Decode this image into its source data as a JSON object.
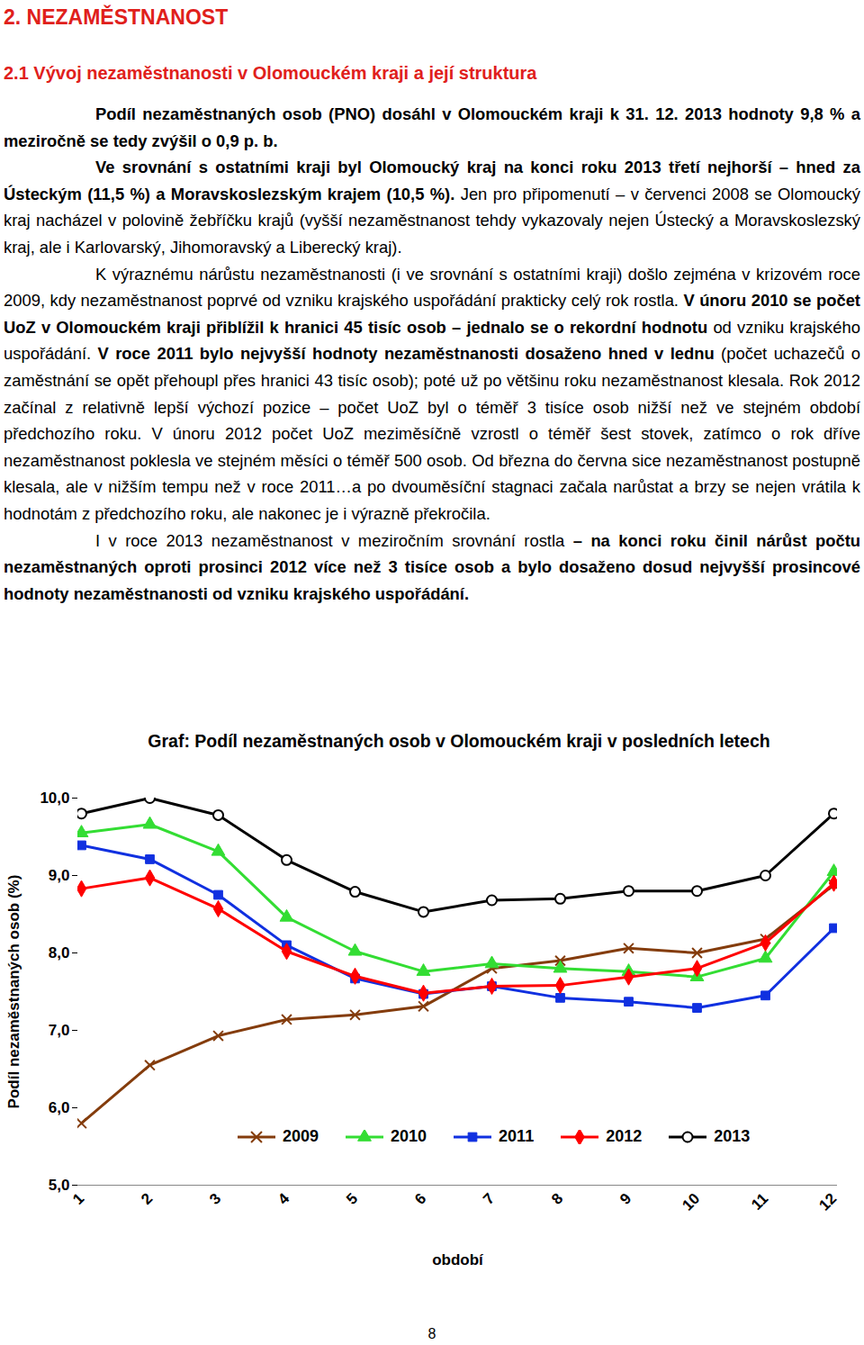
{
  "heading": "2. NEZAMĚSTNANOST",
  "subheading": "2.1 Vývoj nezaměstnanosti v Olomouckém kraji a její struktura",
  "paragraphs": [
    [
      {
        "text": "Podíl nezaměstnaných osob (PNO) dosáhl v Olomouckém kraji k 31. 12. 2013 hodnoty 9,8 % a meziročně se tedy zvýšil o 0,9 p. b.",
        "bold": true
      }
    ],
    [
      {
        "text": "Ve srovnání s ostatními kraji byl Olomoucký kraj na konci roku 2013 třetí nejhorší – hned za Ústeckým (11,5 %) a Moravskoslezským krajem (10,5 %).",
        "bold": true
      },
      {
        "text": " Jen pro připomenutí – v červenci 2008 se Olomoucký kraj nacházel v polovině žebříčku krajů (vyšší nezaměstnanost tehdy vykazovaly nejen Ústecký a Moravskoslezský kraj, ale i Karlovarský, Jihomoravský a Liberecký kraj).",
        "bold": false
      }
    ],
    [
      {
        "text": "K výraznému nárůstu nezaměstnanosti (i ve srovnání s ostatními kraji) došlo zejména v krizovém roce 2009, kdy nezaměstnanost poprvé od vzniku krajského uspořádání prakticky celý rok rostla. ",
        "bold": false
      },
      {
        "text": "V únoru 2010 se počet UoZ v Olomouckém kraji přiblížil k hranici 45 tisíc osob – jednalo se o rekordní hodnotu",
        "bold": true
      },
      {
        "text": " od vzniku krajského uspořádání. ",
        "bold": false
      },
      {
        "text": "V roce 2011 bylo nejvyšší hodnoty nezaměstnanosti dosaženo hned v lednu",
        "bold": true
      },
      {
        "text": " (počet uchazečů o zaměstnání se opět přehoupl přes hranici 43 tisíc osob); poté už po většinu roku nezaměstnanost klesala. Rok 2012 začínal z relativně lepší výchozí pozice – počet UoZ byl o téměř 3 tisíce osob nižší než ve stejném období předchozího roku. V únoru 2012 počet UoZ meziměsíčně vzrostl o téměř šest stovek, zatímco o rok dříve nezaměstnanost poklesla ve stejném měsíci o téměř 500 osob. Od března do června sice nezaměstnanost postupně klesala, ale v nižším tempu než v roce 2011…a po dvouměsíční stagnaci začala narůstat a brzy se nejen vrátila k hodnotám z předchozího roku, ale nakonec je i výrazně překročila.",
        "bold": false
      }
    ],
    [
      {
        "text": "I v roce 2013 nezaměstnanost v meziročním srovnání rostla ",
        "bold": false
      },
      {
        "text": "– na konci roku činil nárůst počtu nezaměstnaných oproti prosinci 2012 více než 3 tisíce osob a bylo dosaženo dosud nejvyšší prosincové hodnoty nezaměstnanosti od vzniku krajského uspořádání.",
        "bold": true
      }
    ]
  ],
  "chart_data": {
    "type": "line",
    "title": "Graf: Podíl nezaměstnaných osob v Olomouckém kraji v posledních letech",
    "x_label": "období",
    "y_label": "Podíl nezaměstnaných osob (%)",
    "categories": [
      "1",
      "2",
      "3",
      "4",
      "5",
      "6",
      "7",
      "8",
      "9",
      "10",
      "11",
      "12"
    ],
    "ylim": [
      5,
      10
    ],
    "yticks": [
      {
        "value": 5,
        "label": "5,0"
      },
      {
        "value": 6,
        "label": "6,0"
      },
      {
        "value": 7,
        "label": "7,0"
      },
      {
        "value": 8,
        "label": "8,0"
      },
      {
        "value": 9,
        "label": "9,0"
      },
      {
        "value": 10,
        "label": "10,0"
      }
    ],
    "grid": false,
    "legend": "bottom",
    "series": [
      {
        "name": "2009",
        "color": "#843c0c",
        "marker": "x",
        "values": [
          5.8,
          6.55,
          6.93,
          7.14,
          7.2,
          7.31,
          7.8,
          7.9,
          8.06,
          8.0,
          8.18,
          8.88
        ]
      },
      {
        "name": "2010",
        "color": "#33dd33",
        "marker": "triangle",
        "values": [
          9.55,
          9.66,
          9.31,
          8.46,
          8.02,
          7.76,
          7.86,
          7.8,
          7.76,
          7.69,
          7.93,
          9.05
        ]
      },
      {
        "name": "2011",
        "color": "#1030e0",
        "marker": "square",
        "values": [
          9.39,
          9.21,
          8.75,
          8.1,
          7.67,
          7.47,
          7.57,
          7.42,
          7.37,
          7.29,
          7.45,
          8.32
        ]
      },
      {
        "name": "2012",
        "color": "#ff0000",
        "marker": "diamond",
        "values": [
          8.83,
          8.97,
          8.57,
          8.02,
          7.7,
          7.48,
          7.57,
          7.58,
          7.69,
          7.8,
          8.13,
          8.9
        ]
      },
      {
        "name": "2013",
        "color": "#000000",
        "marker": "circle",
        "values": [
          9.8,
          10.0,
          9.78,
          9.2,
          8.79,
          8.53,
          8.68,
          8.7,
          8.8,
          8.8,
          9.0,
          9.8
        ]
      }
    ]
  },
  "page_number": "8"
}
